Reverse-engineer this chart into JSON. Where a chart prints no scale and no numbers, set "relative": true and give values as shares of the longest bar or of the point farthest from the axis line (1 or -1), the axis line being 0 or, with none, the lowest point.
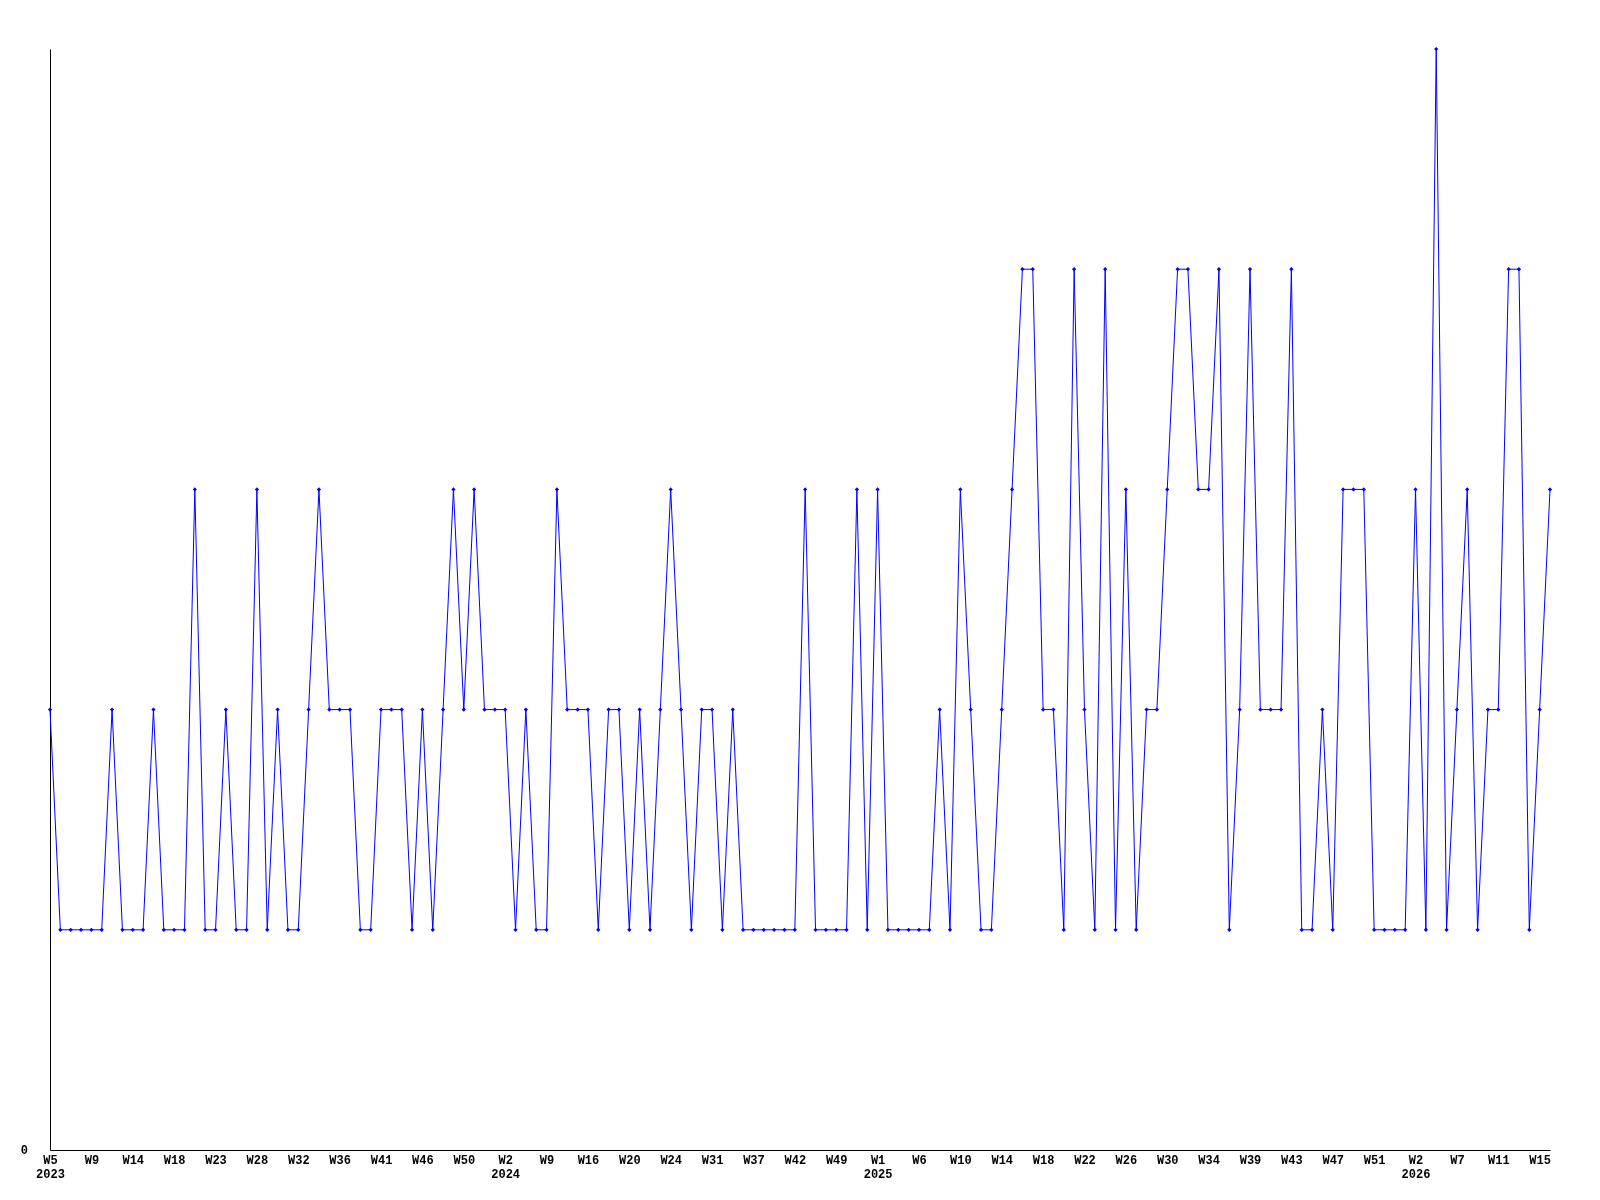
{
  "chart_data": {
    "type": "line",
    "relative": true,
    "marker": "diamond",
    "grid": false,
    "legend": false,
    "annotations": [
      "0"
    ],
    "categories": [
      "W5\n2023",
      null,
      null,
      null,
      "W9",
      null,
      null,
      null,
      "W14",
      null,
      null,
      null,
      "W18",
      null,
      null,
      null,
      "W23",
      null,
      null,
      null,
      "W28",
      null,
      null,
      null,
      "W32",
      null,
      null,
      null,
      "W36",
      null,
      null,
      null,
      "W41",
      null,
      null,
      null,
      "W46",
      null,
      null,
      null,
      "W50",
      null,
      null,
      null,
      "W2\n2024",
      null,
      null,
      null,
      "W9",
      null,
      null,
      null,
      "W16",
      null,
      null,
      null,
      "W20",
      null,
      null,
      null,
      "W24",
      null,
      null,
      null,
      "W31",
      null,
      null,
      null,
      "W37",
      null,
      null,
      null,
      "W42",
      null,
      null,
      null,
      "W49",
      null,
      null,
      null,
      "W1\n2025",
      null,
      null,
      null,
      "W6",
      null,
      null,
      null,
      "W10",
      null,
      null,
      null,
      "W14",
      null,
      null,
      null,
      "W18",
      null,
      null,
      null,
      "W22",
      null,
      null,
      null,
      "W26",
      null,
      null,
      null,
      "W30",
      null,
      null,
      null,
      "W34",
      null,
      null,
      null,
      "W39",
      null,
      null,
      null,
      "W43",
      null,
      null,
      null,
      "W47",
      null,
      null,
      null,
      "W51",
      null,
      null,
      null,
      "W2\n2026",
      null,
      null,
      null,
      "W7",
      null,
      null,
      null,
      "W11",
      null,
      null,
      null,
      "W15",
      null
    ],
    "series": [
      {
        "color": "#0000ff",
        "values": [
          0.4,
          0.2,
          0.2,
          0.2,
          0.2,
          0.2,
          0.4,
          0.2,
          0.2,
          0.2,
          0.4,
          0.2,
          0.2,
          0.2,
          0.6,
          0.2,
          0.2,
          0.4,
          0.2,
          0.2,
          0.6,
          0.2,
          0.4,
          0.2,
          0.2,
          0.4,
          0.6,
          0.4,
          0.4,
          0.4,
          0.2,
          0.2,
          0.4,
          0.4,
          0.4,
          0.2,
          0.4,
          0.2,
          0.4,
          0.6,
          0.4,
          0.6,
          0.4,
          0.4,
          0.4,
          0.2,
          0.4,
          0.2,
          0.2,
          0.6,
          0.4,
          0.4,
          0.4,
          0.2,
          0.4,
          0.4,
          0.2,
          0.4,
          0.2,
          0.4,
          0.6,
          0.4,
          0.2,
          0.4,
          0.4,
          0.2,
          0.4,
          0.2,
          0.2,
          0.2,
          0.2,
          0.2,
          0.2,
          0.6,
          0.2,
          0.2,
          0.2,
          0.2,
          0.6,
          0.2,
          0.6,
          0.2,
          0.2,
          0.2,
          0.2,
          0.2,
          0.4,
          0.2,
          0.6,
          0.4,
          0.2,
          0.2,
          0.4,
          0.6,
          0.8,
          0.8,
          0.4,
          0.4,
          0.2,
          0.8,
          0.4,
          0.2,
          0.8,
          0.2,
          0.6,
          0.2,
          0.4,
          0.4,
          0.6,
          0.8,
          0.8,
          0.6,
          0.6,
          0.8,
          0.2,
          0.4,
          0.8,
          0.4,
          0.4,
          0.4,
          0.8,
          0.2,
          0.2,
          0.4,
          0.2,
          0.6,
          0.6,
          0.6,
          0.2,
          0.2,
          0.2,
          0.2,
          0.6,
          0.2,
          1,
          0.2,
          0.4,
          0.6,
          0.2,
          0.4,
          0.4,
          0.8,
          0.8,
          0.2,
          0.4,
          0.6
        ]
      }
    ]
  }
}
